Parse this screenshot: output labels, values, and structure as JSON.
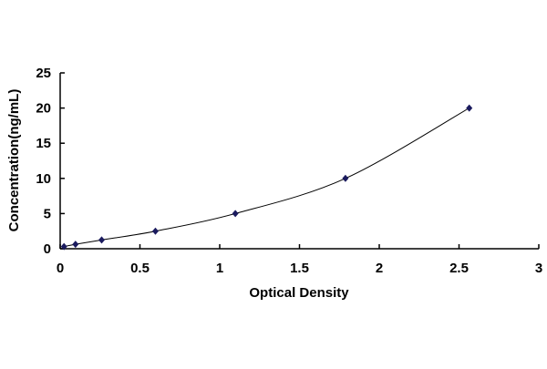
{
  "chart_data": {
    "type": "line",
    "title": "",
    "xlabel": "Optical Density",
    "ylabel": "Concentration(ng/mL)",
    "xlim": [
      0,
      3
    ],
    "ylim": [
      0,
      25
    ],
    "xticks": [
      "0",
      "0.5",
      "1",
      "1.5",
      "2",
      "2.5",
      "3"
    ],
    "yticks": [
      "0",
      "5",
      "10",
      "15",
      "20",
      "25"
    ],
    "grid": false,
    "legend": "none",
    "series": [
      {
        "x": [
          0.024,
          0.096,
          0.26,
          0.597,
          1.098,
          1.788,
          2.564
        ],
        "y": [
          0.312,
          0.625,
          1.25,
          2.5,
          5,
          10,
          20
        ],
        "marker": "diamond",
        "marker_color": "#1a1a5e",
        "line_color": "#000000",
        "smooth": true
      }
    ]
  }
}
